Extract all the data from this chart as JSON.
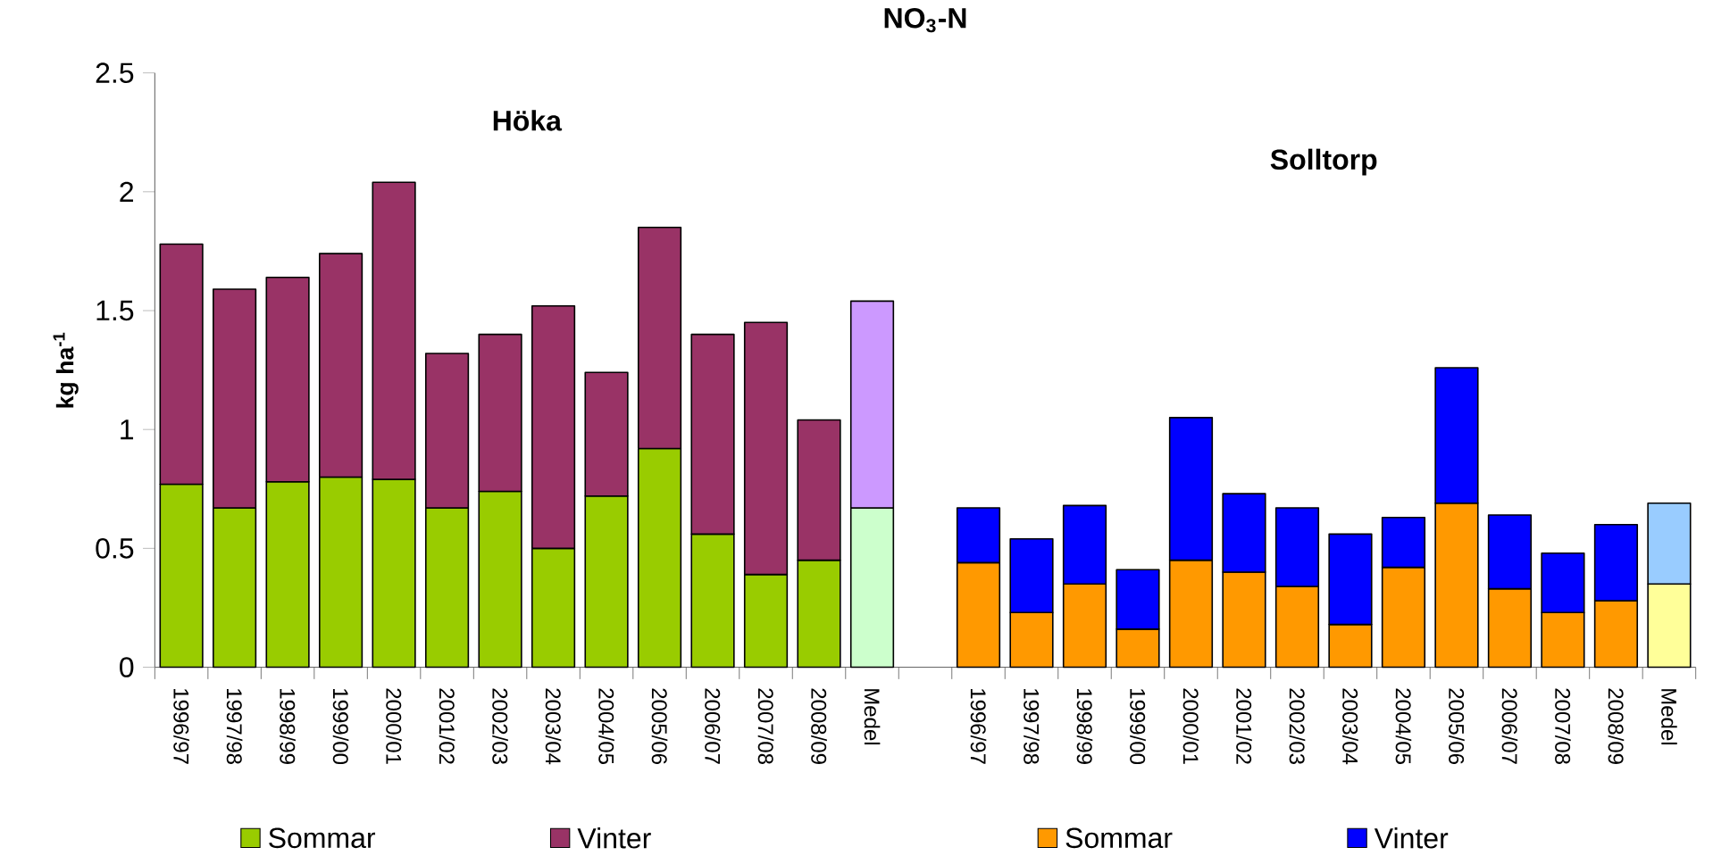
{
  "chart_data": {
    "type": "bar",
    "title": "NO$_{3}$-N",
    "ylabel": "kg ha$^{-1}$",
    "stacked": true,
    "legend": "bottom",
    "categories": [
      "1996/97",
      "1997/98",
      "1998/99",
      "1999/00",
      "2000/01",
      "2001/02",
      "2002/03",
      "2003/04",
      "2004/05",
      "2005/06",
      "2006/07",
      "2007/08",
      "2008/09",
      "Medel",
      null,
      "1996/97",
      "1997/98",
      "1998/99",
      "1999/00",
      "2000/01",
      "2001/02",
      "2002/03",
      "2003/04",
      "2004/05",
      "2005/06",
      "2006/07",
      "2007/08",
      "2008/09",
      "Medel"
    ],
    "series": [
      {
        "name": "Sommar",
        "color": "#99cc00",
        "colors": [
          "#99cc00",
          "#99cc00",
          "#99cc00",
          "#99cc00",
          "#99cc00",
          "#99cc00",
          "#99cc00",
          "#99cc00",
          "#99cc00",
          "#99cc00",
          "#99cc00",
          "#99cc00",
          "#99cc00",
          "#ccffcc",
          null,
          null,
          null,
          null,
          null,
          null,
          null,
          null,
          null,
          null,
          null,
          null,
          null,
          null,
          null
        ],
        "values": [
          0.77,
          0.67,
          0.78,
          0.8,
          0.79,
          0.67,
          0.74,
          0.5,
          0.72,
          0.92,
          0.56,
          0.39,
          0.45,
          0.67,
          null,
          null,
          null,
          null,
          null,
          null,
          null,
          null,
          null,
          null,
          null,
          null,
          null,
          null,
          null
        ]
      },
      {
        "name": "Vinter",
        "color": "#993366",
        "colors": [
          "#993366",
          "#993366",
          "#993366",
          "#993366",
          "#993366",
          "#993366",
          "#993366",
          "#993366",
          "#993366",
          "#993366",
          "#993366",
          "#993366",
          "#993366",
          "#cc99ff",
          null,
          null,
          null,
          null,
          null,
          null,
          null,
          null,
          null,
          null,
          null,
          null,
          null,
          null,
          null
        ],
        "values": [
          1.01,
          0.92,
          0.86,
          0.94,
          1.25,
          0.65,
          0.66,
          1.02,
          0.52,
          0.93,
          0.84,
          1.06,
          0.59,
          0.87,
          null,
          null,
          null,
          null,
          null,
          null,
          null,
          null,
          null,
          null,
          null,
          null,
          null,
          null,
          null
        ]
      },
      {
        "name": "Sommar",
        "color": "#ff9900",
        "colors": [
          null,
          null,
          null,
          null,
          null,
          null,
          null,
          null,
          null,
          null,
          null,
          null,
          null,
          null,
          null,
          "#ff9900",
          "#ff9900",
          "#ff9900",
          "#ff9900",
          "#ff9900",
          "#ff9900",
          "#ff9900",
          "#ff9900",
          "#ff9900",
          "#ff9900",
          "#ff9900",
          "#ff9900",
          "#ff9900",
          "#ffff99"
        ],
        "values": [
          null,
          null,
          null,
          null,
          null,
          null,
          null,
          null,
          null,
          null,
          null,
          null,
          null,
          null,
          null,
          0.44,
          0.23,
          0.35,
          0.16,
          0.45,
          0.4,
          0.34,
          0.18,
          0.42,
          0.69,
          0.33,
          0.23,
          0.28,
          0.35
        ]
      },
      {
        "name": "Vinter",
        "color": "#0000ff",
        "colors": [
          null,
          null,
          null,
          null,
          null,
          null,
          null,
          null,
          null,
          null,
          null,
          null,
          null,
          null,
          null,
          "#0000ff",
          "#0000ff",
          "#0000ff",
          "#0000ff",
          "#0000ff",
          "#0000ff",
          "#0000ff",
          "#0000ff",
          "#0000ff",
          "#0000ff",
          "#0000ff",
          "#0000ff",
          "#0000ff",
          "#99ccff"
        ],
        "values": [
          null,
          null,
          null,
          null,
          null,
          null,
          null,
          null,
          null,
          null,
          null,
          null,
          null,
          null,
          null,
          0.23,
          0.31,
          0.33,
          0.25,
          0.6,
          0.33,
          0.33,
          0.38,
          0.21,
          0.57,
          0.31,
          0.25,
          0.32,
          0.34
        ]
      }
    ],
    "annotations": [
      "Höka",
      "Solltorp"
    ],
    "ylim": [
      0,
      2.5
    ],
    "yticks": [
      0,
      0.5,
      1,
      1.5,
      2,
      2.5
    ]
  }
}
